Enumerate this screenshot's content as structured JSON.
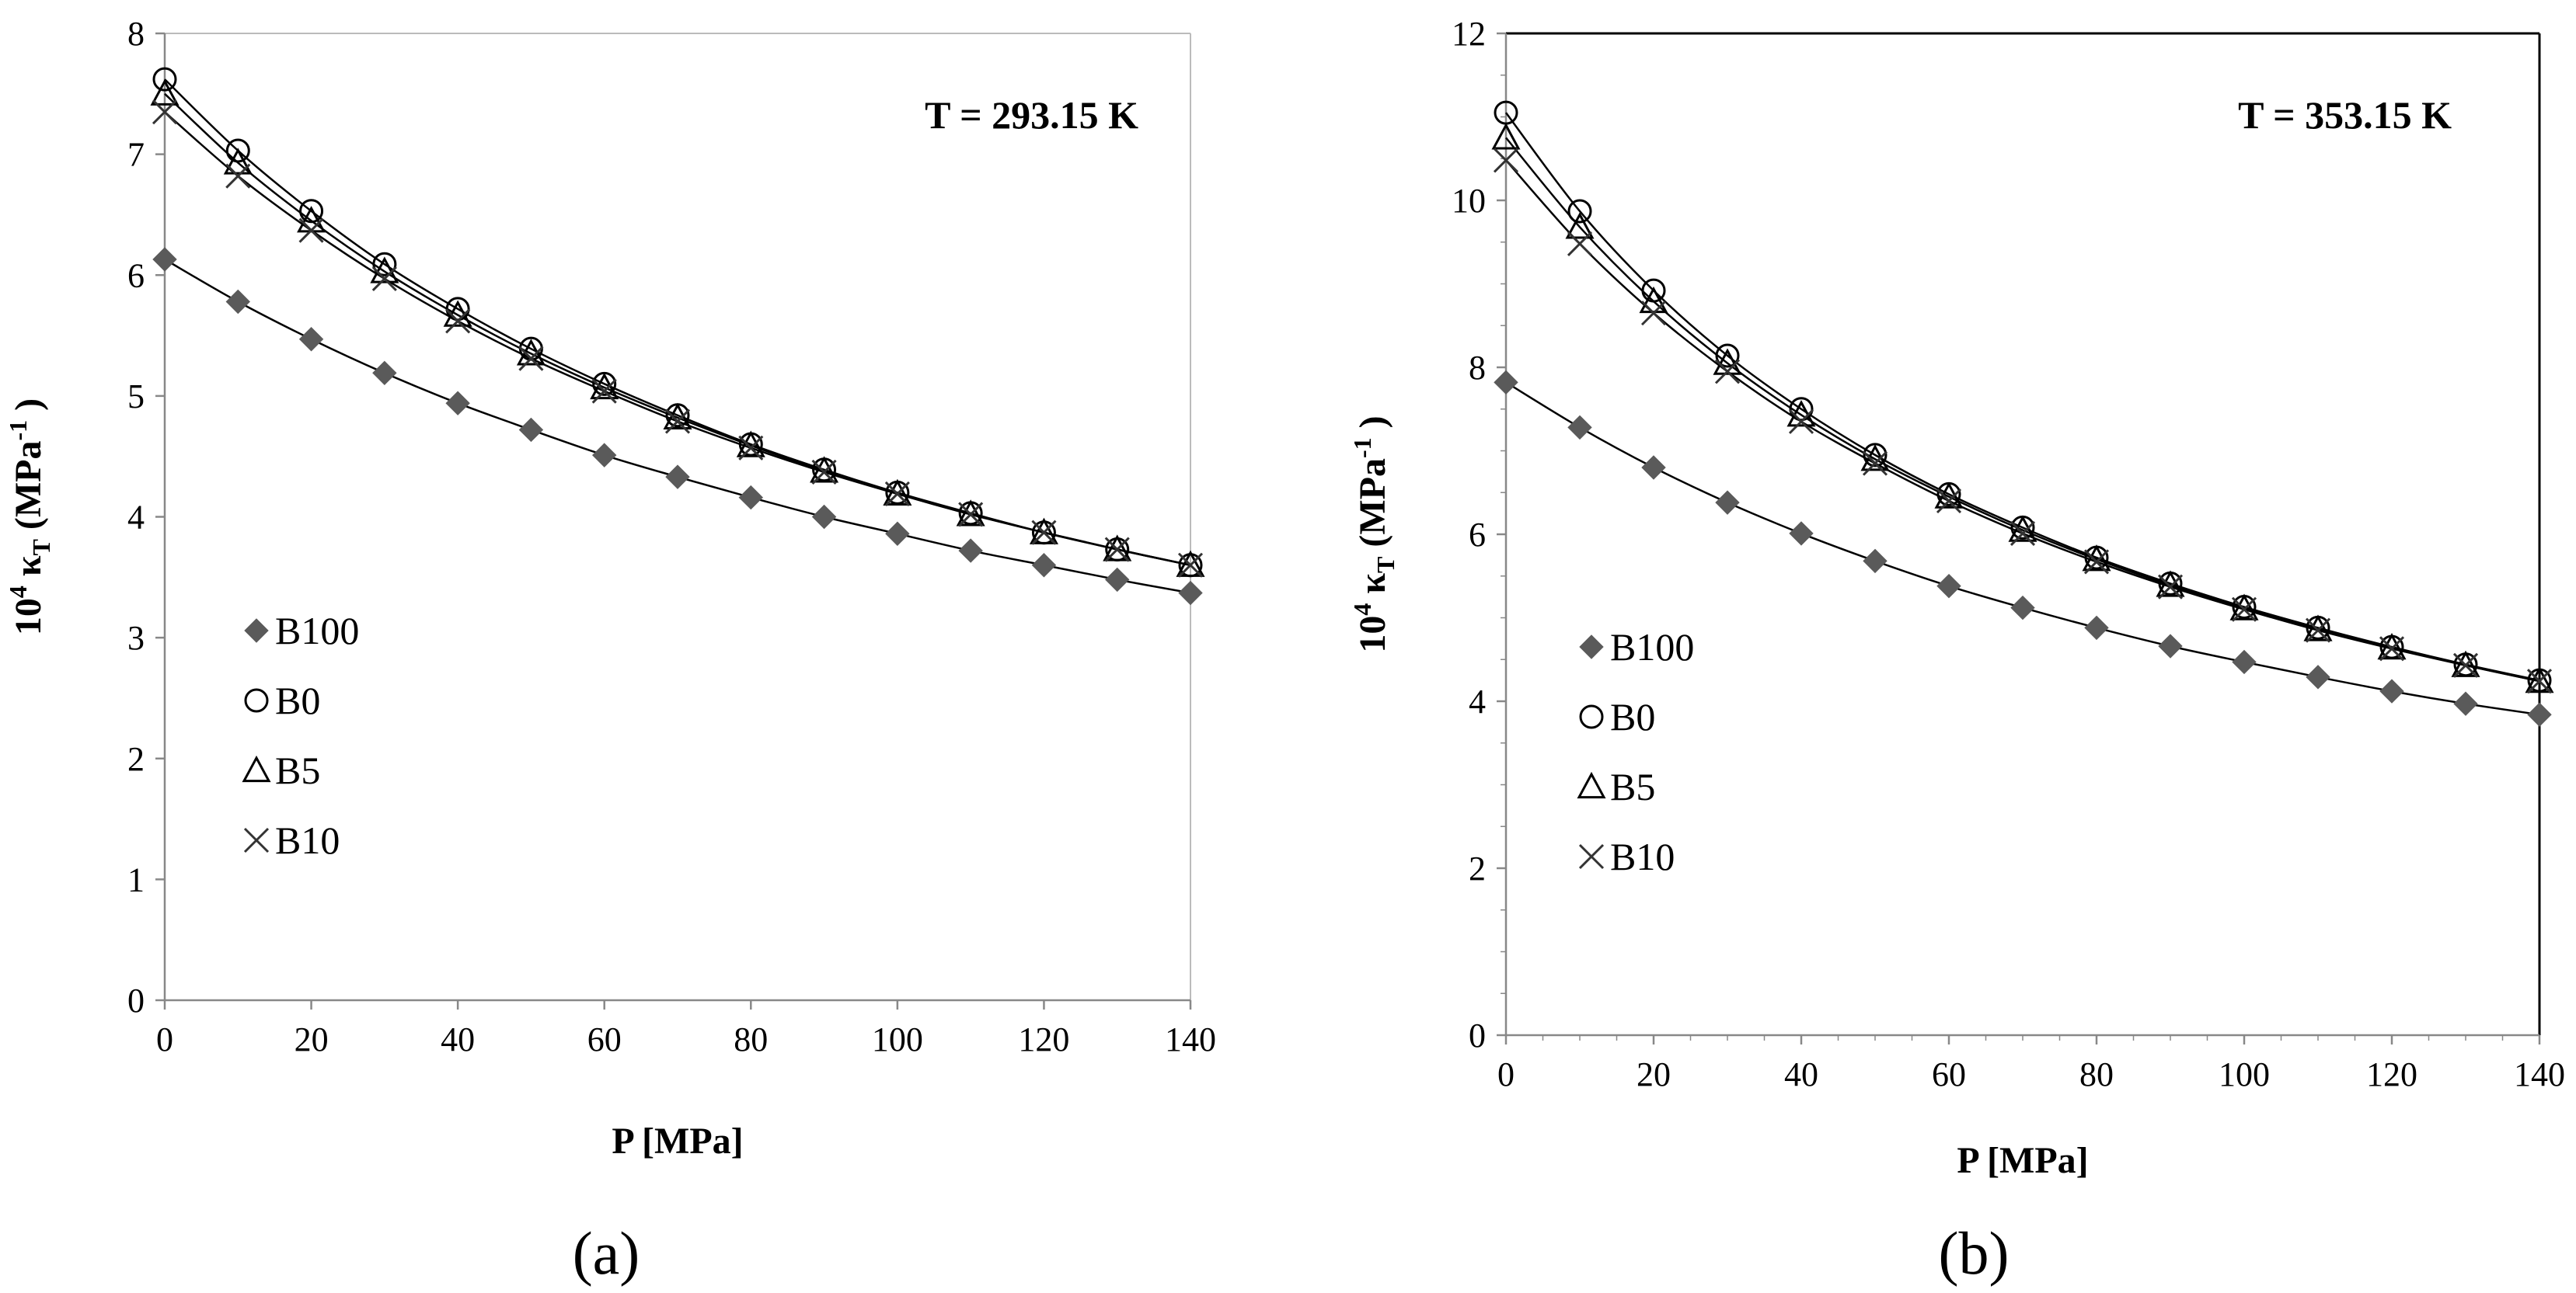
{
  "chart_data": [
    {
      "type": "scatter",
      "panel_label": "(a)",
      "annotation": "T = 293.15 K",
      "xlabel": "P [MPa]",
      "ylabel": {
        "prefix": "10",
        "exp": "4",
        "kappa": "κ",
        "sub": "T",
        "unit_open": "(MPa",
        "unit_exp": "-1",
        "unit_close": ")"
      },
      "xlim": [
        0,
        140
      ],
      "ylim": [
        0,
        8
      ],
      "xticks": [
        "0",
        "20",
        "40",
        "60",
        "80",
        "100",
        "120",
        "140"
      ],
      "yticks": [
        "0",
        "1",
        "2",
        "3",
        "4",
        "5",
        "6",
        "7",
        "8"
      ],
      "right_frame": false,
      "x": [
        0,
        10,
        20,
        30,
        40,
        50,
        60,
        70,
        80,
        90,
        100,
        110,
        120,
        130,
        140
      ],
      "series": [
        {
          "name": "B100",
          "marker": "diamond",
          "values": [
            6.13,
            5.78,
            5.47,
            5.19,
            4.94,
            4.72,
            4.51,
            4.33,
            4.16,
            4.0,
            3.86,
            3.72,
            3.6,
            3.48,
            3.37
          ]
        },
        {
          "name": "B0",
          "marker": "circle",
          "values": [
            7.62,
            7.03,
            6.53,
            6.09,
            5.72,
            5.39,
            5.1,
            4.84,
            4.6,
            4.39,
            4.2,
            4.03,
            3.87,
            3.73,
            3.6
          ]
        },
        {
          "name": "B5",
          "marker": "triangle",
          "values": [
            7.5,
            6.93,
            6.45,
            6.03,
            5.67,
            5.35,
            5.07,
            4.82,
            4.59,
            4.38,
            4.19,
            4.02,
            3.87,
            3.73,
            3.6
          ]
        },
        {
          "name": "B10",
          "marker": "cross",
          "values": [
            7.35,
            6.82,
            6.37,
            5.97,
            5.62,
            5.31,
            5.04,
            4.79,
            4.57,
            4.37,
            4.19,
            4.02,
            3.87,
            3.73,
            3.6
          ]
        }
      ]
    },
    {
      "type": "scatter",
      "panel_label": "(b)",
      "annotation": "T = 353.15 K",
      "xlabel": "P [MPa]",
      "ylabel": {
        "prefix": "10",
        "exp": "4",
        "kappa": "κ",
        "sub": "T",
        "unit_open": "(MPa",
        "unit_exp": "-1",
        "unit_close": ")"
      },
      "xlim": [
        0,
        140
      ],
      "ylim": [
        0,
        12
      ],
      "xticks": [
        "0",
        "20",
        "40",
        "60",
        "80",
        "100",
        "120",
        "140"
      ],
      "yticks": [
        "0",
        "2",
        "4",
        "6",
        "8",
        "10",
        "12"
      ],
      "right_frame": true,
      "x": [
        0,
        10,
        20,
        30,
        40,
        50,
        60,
        70,
        80,
        90,
        100,
        110,
        120,
        130,
        140
      ],
      "series": [
        {
          "name": "B100",
          "marker": "diamond",
          "values": [
            7.82,
            7.28,
            6.8,
            6.38,
            6.01,
            5.68,
            5.38,
            5.12,
            4.88,
            4.66,
            4.47,
            4.29,
            4.12,
            3.97,
            3.84
          ]
        },
        {
          "name": "B0",
          "marker": "circle",
          "values": [
            11.05,
            9.87,
            8.92,
            8.14,
            7.5,
            6.95,
            6.48,
            6.08,
            5.72,
            5.41,
            5.13,
            4.88,
            4.65,
            4.44,
            4.25
          ]
        },
        {
          "name": "B5",
          "marker": "triangle",
          "values": [
            10.75,
            9.68,
            8.79,
            8.05,
            7.43,
            6.9,
            6.45,
            6.05,
            5.7,
            5.39,
            5.11,
            4.86,
            4.64,
            4.43,
            4.24
          ]
        },
        {
          "name": "B10",
          "marker": "cross",
          "values": [
            10.48,
            9.48,
            8.65,
            7.95,
            7.35,
            6.85,
            6.4,
            6.01,
            5.67,
            5.37,
            5.1,
            4.85,
            4.63,
            4.43,
            4.24
          ]
        }
      ]
    }
  ]
}
